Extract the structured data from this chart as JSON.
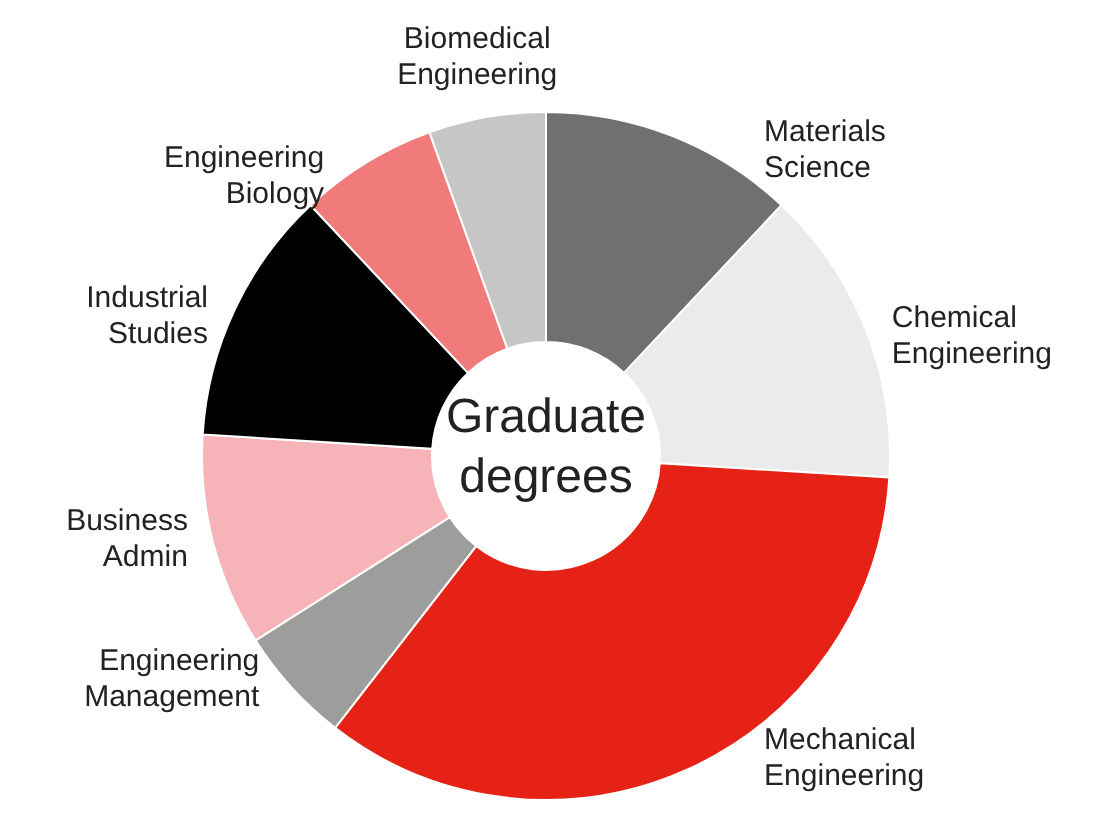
{
  "chart_data": {
    "type": "donut",
    "title": "Graduate degrees",
    "categories": [
      "Materials Science",
      "Chemical Engineering",
      "Mechanical Engineering",
      "Engineering Management",
      "Business Admin",
      "Industrial Studies",
      "Engineering Biology",
      "Biomedical Engineering"
    ],
    "values": [
      12,
      14,
      34.5,
      5.5,
      10,
      12,
      6.5,
      5.5
    ],
    "colors": [
      "#707070",
      "#ebebeb",
      "#e52215",
      "#9d9d9c",
      "#f6b3b8",
      "#000000",
      "#f07b7a",
      "#c6c6c6"
    ]
  }
}
